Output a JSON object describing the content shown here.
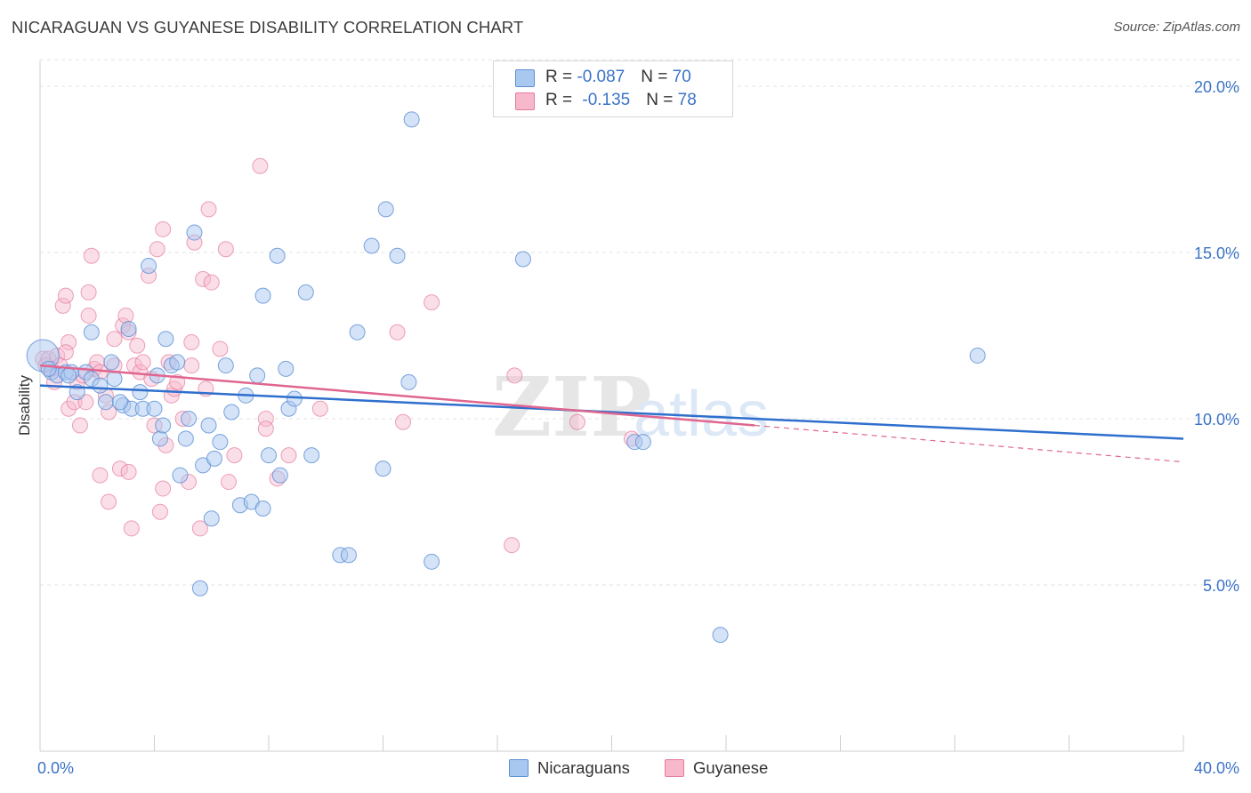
{
  "title": "NICARAGUAN VS GUYANESE DISABILITY CORRELATION CHART",
  "source": "Source: ZipAtlas.com",
  "watermark": {
    "zip": "ZIP",
    "atlas": "atlas"
  },
  "legend_top": [
    {
      "r_label": "R = ",
      "r_value": "-0.087",
      "n_label": "N = ",
      "n_value": "70"
    },
    {
      "r_label": "R = ",
      "r_value": "-0.135",
      "n_label": "N = ",
      "n_value": "78"
    }
  ],
  "legend_bottom": [
    "Nicaraguans",
    "Guyanese"
  ],
  "colors": {
    "blue_fill": "#a9c8f0",
    "blue_stroke": "#5b8fd6",
    "blue_line": "#2f6fcd",
    "pink_fill": "#f7b8cb",
    "pink_stroke": "#e47a9d",
    "pink_line": "#e0668f",
    "tick_text": "#3b73c8",
    "grid": "#e3e3e3"
  },
  "chart_data": {
    "type": "scatter",
    "title": "NICARAGUAN VS GUYANESE DISABILITY CORRELATION CHART",
    "xlabel": "",
    "ylabel": "Disability",
    "xlim": [
      0,
      40
    ],
    "ylim": [
      0,
      20.8
    ],
    "y_ticks": [
      "20.0%",
      "15.0%",
      "10.0%",
      "5.0%"
    ],
    "y_tick_values": [
      20,
      15,
      10,
      5
    ],
    "x_ticks": [
      "0.0%",
      "40.0%"
    ],
    "x_tick_values": [
      0,
      40
    ],
    "grid": true,
    "legend_position": "top-center",
    "series": [
      {
        "name": "Nicaraguans",
        "r": -0.087,
        "n": 70,
        "trend": {
          "x": [
            0,
            40
          ],
          "y": [
            11.0,
            9.4
          ]
        },
        "points": [
          [
            0.1,
            11.9
          ],
          [
            0.4,
            11.4
          ],
          [
            0.6,
            11.3
          ],
          [
            0.9,
            11.4
          ],
          [
            1.1,
            11.4
          ],
          [
            1.3,
            10.8
          ],
          [
            1.6,
            11.4
          ],
          [
            1.8,
            11.2
          ],
          [
            1.8,
            12.6
          ],
          [
            2.1,
            11.0
          ],
          [
            2.3,
            10.5
          ],
          [
            2.5,
            11.7
          ],
          [
            2.6,
            11.2
          ],
          [
            2.9,
            10.4
          ],
          [
            3.1,
            12.7
          ],
          [
            3.2,
            10.3
          ],
          [
            3.5,
            10.8
          ],
          [
            3.6,
            10.3
          ],
          [
            3.8,
            14.6
          ],
          [
            4.1,
            11.3
          ],
          [
            4.2,
            9.4
          ],
          [
            4.3,
            9.8
          ],
          [
            4.4,
            12.4
          ],
          [
            4.6,
            11.6
          ],
          [
            4.8,
            11.7
          ],
          [
            4.9,
            8.3
          ],
          [
            5.1,
            9.4
          ],
          [
            5.2,
            10.0
          ],
          [
            5.4,
            15.6
          ],
          [
            5.6,
            4.9
          ],
          [
            5.7,
            8.6
          ],
          [
            5.9,
            9.8
          ],
          [
            6.0,
            7.0
          ],
          [
            6.1,
            8.8
          ],
          [
            6.3,
            9.3
          ],
          [
            6.5,
            11.6
          ],
          [
            6.7,
            10.2
          ],
          [
            7.0,
            7.4
          ],
          [
            7.2,
            10.7
          ],
          [
            7.4,
            7.5
          ],
          [
            7.6,
            11.3
          ],
          [
            7.8,
            7.3
          ],
          [
            7.8,
            13.7
          ],
          [
            8.0,
            8.9
          ],
          [
            8.3,
            14.9
          ],
          [
            8.4,
            8.3
          ],
          [
            8.6,
            11.5
          ],
          [
            8.7,
            10.3
          ],
          [
            8.9,
            10.6
          ],
          [
            9.3,
            13.8
          ],
          [
            9.5,
            8.9
          ],
          [
            10.5,
            5.9
          ],
          [
            10.8,
            5.9
          ],
          [
            11.1,
            12.6
          ],
          [
            11.6,
            15.2
          ],
          [
            12.0,
            8.5
          ],
          [
            12.1,
            16.3
          ],
          [
            12.5,
            14.9
          ],
          [
            12.9,
            11.1
          ],
          [
            13.0,
            19.0
          ],
          [
            13.7,
            5.7
          ],
          [
            16.9,
            14.8
          ],
          [
            20.8,
            9.3
          ],
          [
            21.1,
            9.3
          ],
          [
            23.8,
            3.5
          ],
          [
            32.8,
            11.9
          ],
          [
            0.3,
            11.5
          ],
          [
            1.0,
            11.3
          ],
          [
            2.8,
            10.5
          ],
          [
            4.0,
            10.3
          ]
        ]
      },
      {
        "name": "Guyanese",
        "r": -0.135,
        "n": 78,
        "trend": {
          "x": [
            0,
            25
          ],
          "y": [
            11.6,
            9.8
          ]
        },
        "trend_dashed": {
          "x": [
            25,
            40
          ],
          "y": [
            9.8,
            8.7
          ]
        },
        "points": [
          [
            0.1,
            11.8
          ],
          [
            0.2,
            11.6
          ],
          [
            0.3,
            11.8
          ],
          [
            0.4,
            11.5
          ],
          [
            0.5,
            11.1
          ],
          [
            0.6,
            11.9
          ],
          [
            0.7,
            11.6
          ],
          [
            0.8,
            13.4
          ],
          [
            0.9,
            13.7
          ],
          [
            1.0,
            12.3
          ],
          [
            1.0,
            10.3
          ],
          [
            1.2,
            10.5
          ],
          [
            1.3,
            11.1
          ],
          [
            1.4,
            9.8
          ],
          [
            1.5,
            11.3
          ],
          [
            1.6,
            10.5
          ],
          [
            1.7,
            13.1
          ],
          [
            1.7,
            13.8
          ],
          [
            1.8,
            14.9
          ],
          [
            1.9,
            11.5
          ],
          [
            2.0,
            11.7
          ],
          [
            2.1,
            11.4
          ],
          [
            2.1,
            8.3
          ],
          [
            2.3,
            10.7
          ],
          [
            2.4,
            10.2
          ],
          [
            2.4,
            7.5
          ],
          [
            2.6,
            12.4
          ],
          [
            2.6,
            11.6
          ],
          [
            2.8,
            8.5
          ],
          [
            2.9,
            12.8
          ],
          [
            3.0,
            13.1
          ],
          [
            3.1,
            8.4
          ],
          [
            3.1,
            12.6
          ],
          [
            3.2,
            6.7
          ],
          [
            3.3,
            11.6
          ],
          [
            3.4,
            12.2
          ],
          [
            3.5,
            11.4
          ],
          [
            3.6,
            11.7
          ],
          [
            3.8,
            14.3
          ],
          [
            3.9,
            11.2
          ],
          [
            4.0,
            9.8
          ],
          [
            4.1,
            15.1
          ],
          [
            4.2,
            7.2
          ],
          [
            4.3,
            7.9
          ],
          [
            4.3,
            15.7
          ],
          [
            4.4,
            9.2
          ],
          [
            4.5,
            11.7
          ],
          [
            4.6,
            10.7
          ],
          [
            4.7,
            10.9
          ],
          [
            4.8,
            11.1
          ],
          [
            5.0,
            10.0
          ],
          [
            5.2,
            8.1
          ],
          [
            5.3,
            11.6
          ],
          [
            5.3,
            12.3
          ],
          [
            5.4,
            15.3
          ],
          [
            5.6,
            6.7
          ],
          [
            5.7,
            14.2
          ],
          [
            5.8,
            10.9
          ],
          [
            5.9,
            16.3
          ],
          [
            6.0,
            14.1
          ],
          [
            6.3,
            12.1
          ],
          [
            6.5,
            15.1
          ],
          [
            6.6,
            8.1
          ],
          [
            6.8,
            8.9
          ],
          [
            7.7,
            17.6
          ],
          [
            7.9,
            10.0
          ],
          [
            7.9,
            9.7
          ],
          [
            8.3,
            8.2
          ],
          [
            8.7,
            8.9
          ],
          [
            9.8,
            10.3
          ],
          [
            12.5,
            12.6
          ],
          [
            12.7,
            9.9
          ],
          [
            13.7,
            13.5
          ],
          [
            16.5,
            6.2
          ],
          [
            16.6,
            11.3
          ],
          [
            18.8,
            9.9
          ],
          [
            20.7,
            9.4
          ],
          [
            0.9,
            12.0
          ]
        ]
      }
    ]
  }
}
